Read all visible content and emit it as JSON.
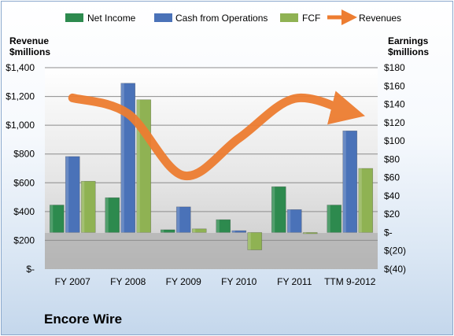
{
  "company": "Encore Wire",
  "chart_data": {
    "type": "bar",
    "categories": [
      "FY 2007",
      "FY 2008",
      "FY 2009",
      "FY 2010",
      "FY 2011",
      "TTM 9-2012"
    ],
    "series": [
      {
        "name": "Net Income",
        "axis": "right",
        "color": "#2d8a4e",
        "values": [
          30,
          38,
          3,
          14,
          50,
          30
        ]
      },
      {
        "name": "Cash from Operations",
        "axis": "right",
        "color": "#4a72b8",
        "values": [
          83,
          163,
          28,
          2,
          25,
          111
        ]
      },
      {
        "name": "FCF",
        "axis": "right",
        "color": "#8fb253",
        "values": [
          56,
          145,
          4,
          -19,
          0,
          70
        ]
      },
      {
        "name": "Revenues",
        "axis": "left",
        "type": "line",
        "color": "#ed7d31",
        "values": [
          1190,
          1080,
          650,
          910,
          1185,
          1090
        ]
      }
    ],
    "left_axis": {
      "label_line1": "Revenue",
      "label_line2": "$millions",
      "min": 0,
      "max": 1400,
      "step": 200,
      "tick_labels": [
        "$-",
        "$200",
        "$400",
        "$600",
        "$800",
        "$1,000",
        "$1,200",
        "$1,400"
      ]
    },
    "right_axis": {
      "label_line1": "Earnings",
      "label_line2": "$millions",
      "min": -40,
      "max": 180,
      "step": 20,
      "tick_labels": [
        "$(40)",
        "$(20)",
        "$-",
        "$20",
        "$40",
        "$60",
        "$80",
        "$100",
        "$120",
        "$140",
        "$160",
        "$180"
      ]
    },
    "legend": {
      "position": "top",
      "entries": [
        "Net Income",
        "Cash from Operations",
        "FCF",
        "Revenues"
      ]
    },
    "grid": true
  }
}
